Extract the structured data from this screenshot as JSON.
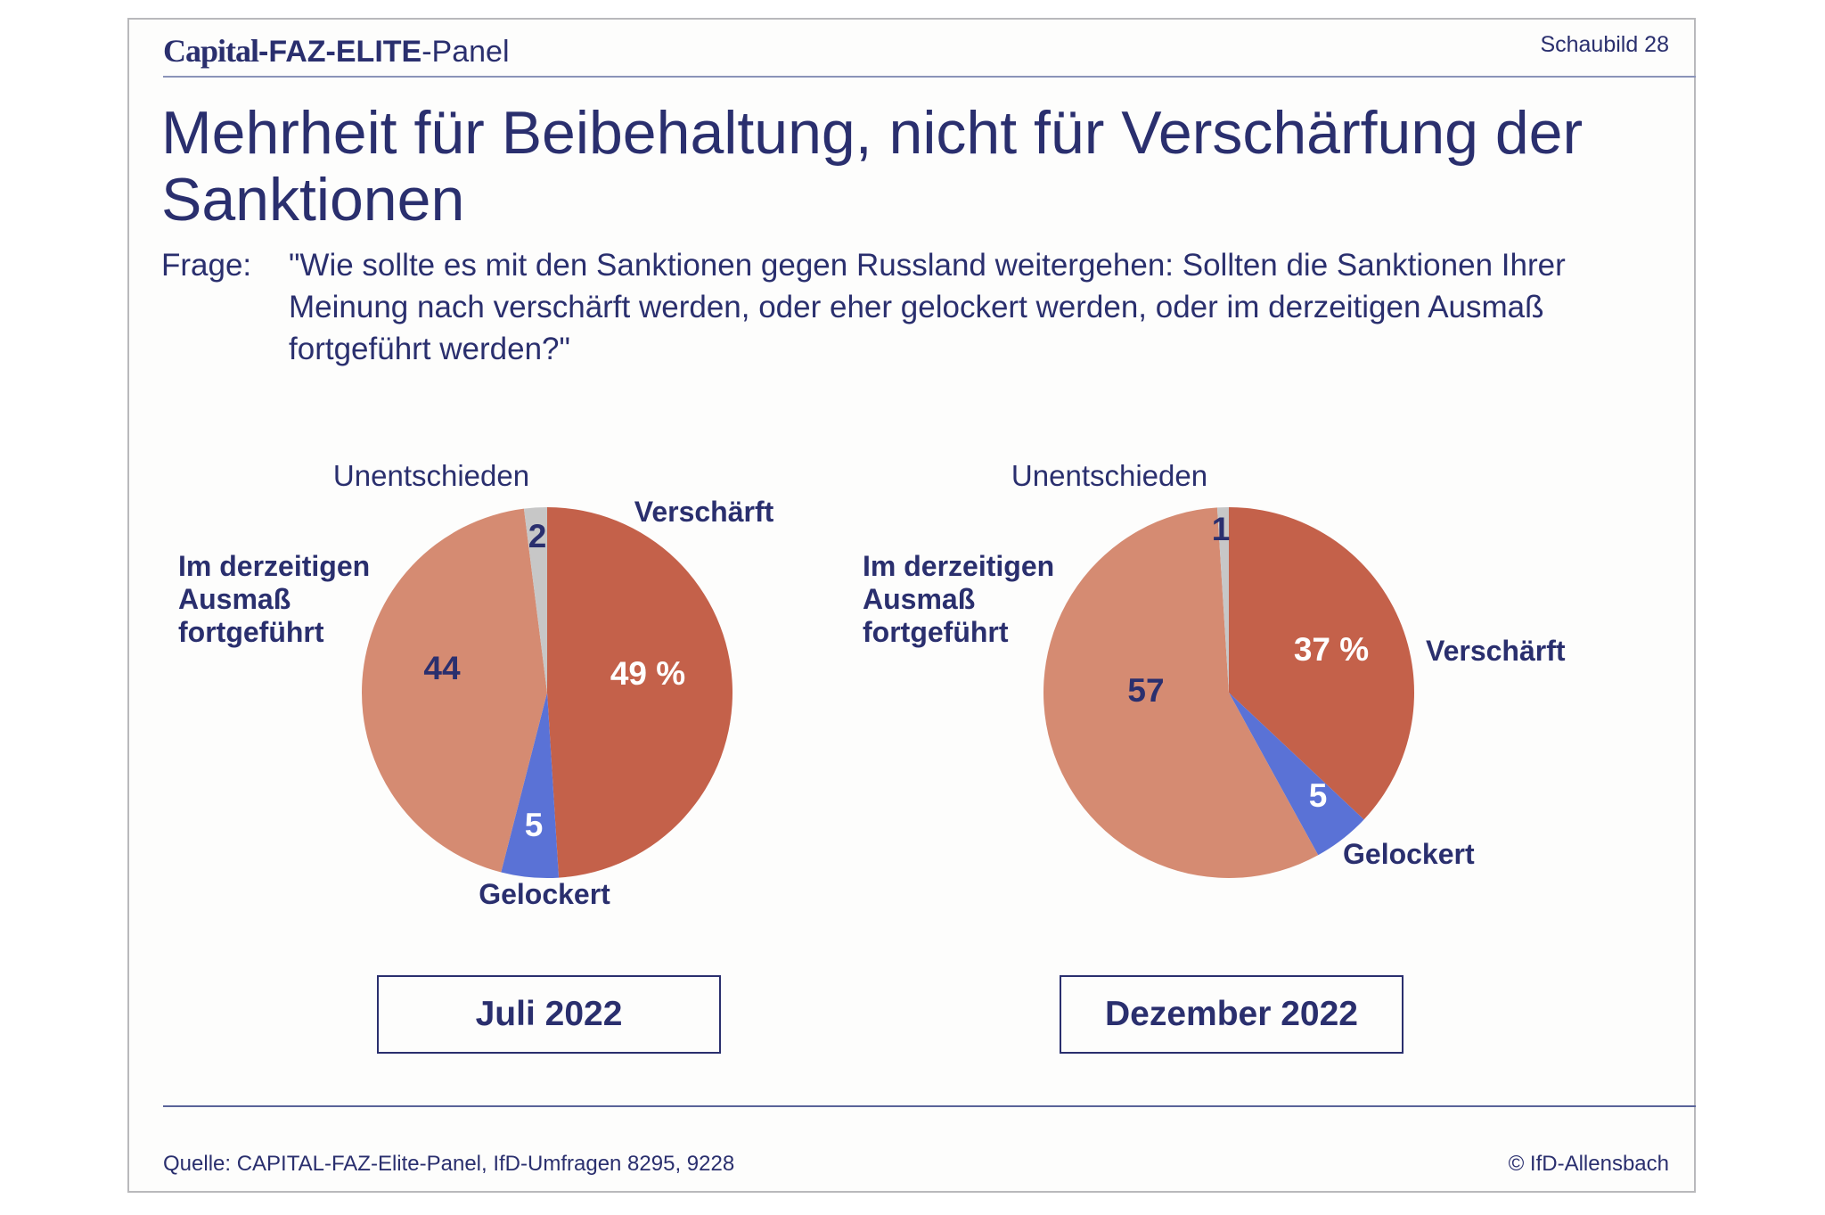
{
  "brand": {
    "capital": "Capital",
    "faz_elite": "-FAZ-ELITE",
    "panel": "-Panel"
  },
  "schaubild": "Schaubild 28",
  "title": "Mehrheit für Beibehaltung, nicht für Verschärfung der Sanktionen",
  "question": {
    "label": "Frage:",
    "text": "\"Wie sollte es mit den Sanktionen gegen Russland weitergehen: Sollten die Sanktionen Ihrer Meinung nach verschärft werden, oder eher gelockert werden, oder im derzeitigen Ausmaß fortgeführt werden?\""
  },
  "colors": {
    "text": "#2a2f6e",
    "verschaerft": "#c4614a",
    "gelockert": "#5a72d6",
    "fortgefuehrt": "#d58b72",
    "unentschieden": "#c7c7c7"
  },
  "chart_data": [
    {
      "type": "pie",
      "period": "Juli 2022",
      "unit": "%",
      "slices": [
        {
          "label": "Verschärft",
          "value": 49,
          "value_label": "49 %"
        },
        {
          "label": "Gelockert",
          "value": 5,
          "value_label": "5"
        },
        {
          "label": "Im derzeitigen Ausmaß fortgeführt",
          "value": 44,
          "value_label": "44"
        },
        {
          "label": "Unentschieden",
          "value": 2,
          "value_label": "2"
        }
      ]
    },
    {
      "type": "pie",
      "period": "Dezember 2022",
      "unit": "%",
      "slices": [
        {
          "label": "Verschärft",
          "value": 37,
          "value_label": "37 %"
        },
        {
          "label": "Gelockert",
          "value": 5,
          "value_label": "5"
        },
        {
          "label": "Im derzeitigen Ausmaß fortgeführt",
          "value": 57,
          "value_label": "57"
        },
        {
          "label": "Unentschieden",
          "value": 1,
          "value_label": "1"
        }
      ]
    }
  ],
  "footer": {
    "source": "Quelle: CAPITAL-FAZ-Elite-Panel, IfD-Umfragen 8295, 9228",
    "copyright": "© IfD-Allensbach"
  }
}
